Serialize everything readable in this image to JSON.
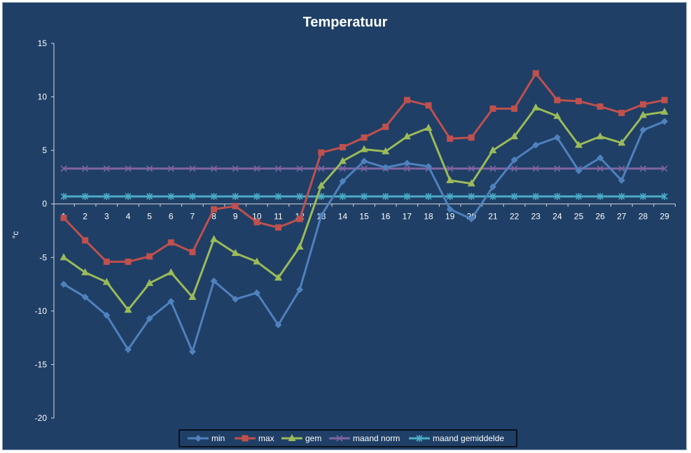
{
  "chart_data": {
    "type": "line",
    "title": "Temperatuur",
    "xlabel": "",
    "ylabel": "°c",
    "ylim": [
      -20,
      15
    ],
    "yticks": [
      15,
      10,
      5,
      0,
      -5,
      -10,
      -15,
      -20
    ],
    "categories": [
      "1",
      "2",
      "3",
      "4",
      "5",
      "6",
      "7",
      "8",
      "9",
      "10",
      "11",
      "12",
      "13",
      "14",
      "15",
      "16",
      "17",
      "18",
      "19",
      "20",
      "21",
      "22",
      "23",
      "24",
      "25",
      "26",
      "27",
      "28",
      "29"
    ],
    "grid": false,
    "legend_position": "bottom",
    "series": [
      {
        "name": "min",
        "color": "#4f81bd",
        "marker": "diamond",
        "values": [
          -7.5,
          -8.7,
          -10.4,
          -13.6,
          -10.7,
          -9.1,
          -13.8,
          -7.2,
          -8.9,
          -8.3,
          -11.3,
          -8.0,
          -1.1,
          2.1,
          4.0,
          3.4,
          3.8,
          3.5,
          -0.5,
          -1.4,
          1.6,
          4.1,
          5.5,
          6.2,
          3.1,
          4.3,
          2.2,
          6.9,
          7.7
        ]
      },
      {
        "name": "max",
        "color": "#c0504d",
        "marker": "square",
        "values": [
          -1.3,
          -3.4,
          -5.4,
          -5.4,
          -4.9,
          -3.6,
          -4.5,
          -0.5,
          -0.2,
          -1.7,
          -2.2,
          -1.4,
          4.8,
          5.3,
          6.2,
          7.2,
          9.7,
          9.2,
          6.1,
          6.2,
          8.9,
          8.9,
          12.2,
          9.7,
          9.6,
          9.1,
          8.5,
          9.3,
          9.7
        ]
      },
      {
        "name": "gem",
        "color": "#9bbb59",
        "marker": "triangle",
        "values": [
          -5.0,
          -6.4,
          -7.3,
          -9.9,
          -7.4,
          -6.4,
          -8.7,
          -3.3,
          -4.6,
          -5.4,
          -6.9,
          -4.0,
          1.7,
          4.0,
          5.1,
          4.9,
          6.3,
          7.1,
          2.2,
          1.9,
          5.0,
          6.3,
          9.0,
          8.2,
          5.5,
          6.3,
          5.7,
          8.3,
          8.6
        ]
      },
      {
        "name": "maand norm",
        "color": "#8064a2",
        "marker": "x",
        "values": [
          3.3,
          3.3,
          3.3,
          3.3,
          3.3,
          3.3,
          3.3,
          3.3,
          3.3,
          3.3,
          3.3,
          3.3,
          3.3,
          3.3,
          3.3,
          3.3,
          3.3,
          3.3,
          3.3,
          3.3,
          3.3,
          3.3,
          3.3,
          3.3,
          3.3,
          3.3,
          3.3,
          3.3,
          3.3
        ]
      },
      {
        "name": "maand gemiddelde",
        "color": "#4bacc6",
        "marker": "asterisk",
        "values": [
          0.7,
          0.7,
          0.7,
          0.7,
          0.7,
          0.7,
          0.7,
          0.7,
          0.7,
          0.7,
          0.7,
          0.7,
          0.7,
          0.7,
          0.7,
          0.7,
          0.7,
          0.7,
          0.7,
          0.7,
          0.7,
          0.7,
          0.7,
          0.7,
          0.7,
          0.7,
          0.7,
          0.7,
          0.7
        ]
      }
    ]
  }
}
